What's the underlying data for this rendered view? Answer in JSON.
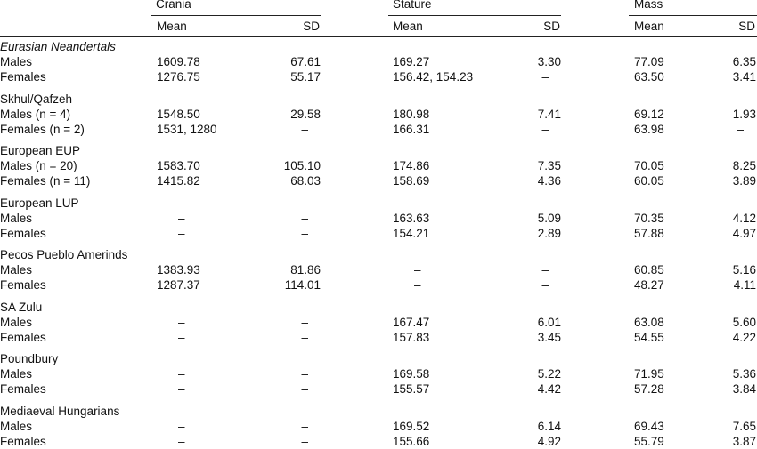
{
  "header": {
    "groups": [
      "Crania",
      "Stature",
      "Mass"
    ],
    "subheaders": [
      "Mean",
      "SD",
      "Mean",
      "SD",
      "Mean",
      "SD"
    ]
  },
  "table": {
    "groups": [
      {
        "label": "Eurasian Neandertals",
        "rows": [
          {
            "label": "Males",
            "cells": [
              "1609.78",
              "67.61",
              "169.27",
              "3.30",
              "77.09",
              "6.35"
            ]
          },
          {
            "label": "Females",
            "cells": [
              "1276.75",
              "55.17",
              "156.42, 154.23",
              "–",
              "63.50",
              "3.41"
            ]
          }
        ]
      },
      {
        "label": "Skhul/Qafzeh",
        "rows": [
          {
            "label": "Males (n = 4)",
            "cells": [
              "1548.50",
              "29.58",
              "180.98",
              "7.41",
              "69.12",
              "1.93"
            ]
          },
          {
            "label": "Females (n = 2)",
            "cells": [
              "1531, 1280",
              "–",
              "166.31",
              "–",
              "63.98",
              "–"
            ]
          }
        ]
      },
      {
        "label": "European EUP",
        "rows": [
          {
            "label": "Males (n = 20)",
            "cells": [
              "1583.70",
              "105.10",
              "174.86",
              "7.35",
              "70.05",
              "8.25"
            ]
          },
          {
            "label": "Females (n = 11)",
            "cells": [
              "1415.82",
              "68.03",
              "158.69",
              "4.36",
              "60.05",
              "3.89"
            ]
          }
        ]
      },
      {
        "label": "European LUP",
        "rows": [
          {
            "label": "Males",
            "cells": [
              "–",
              "–",
              "163.63",
              "5.09",
              "70.35",
              "4.12"
            ]
          },
          {
            "label": "Females",
            "cells": [
              "–",
              "–",
              "154.21",
              "2.89",
              "57.88",
              "4.97"
            ]
          }
        ]
      },
      {
        "label": "Pecos Pueblo Amerinds",
        "rows": [
          {
            "label": "Males",
            "cells": [
              "1383.93",
              "81.86",
              "–",
              "–",
              "60.85",
              "5.16"
            ]
          },
          {
            "label": "Females",
            "cells": [
              "1287.37",
              "114.01",
              "–",
              "–",
              "48.27",
              "4.11"
            ]
          }
        ]
      },
      {
        "label": "SA Zulu",
        "rows": [
          {
            "label": "Males",
            "cells": [
              "–",
              "–",
              "167.47",
              "6.01",
              "63.08",
              "5.60"
            ]
          },
          {
            "label": "Females",
            "cells": [
              "–",
              "–",
              "157.83",
              "3.45",
              "54.55",
              "4.22"
            ]
          }
        ]
      },
      {
        "label": "Poundbury",
        "rows": [
          {
            "label": "Males",
            "cells": [
              "–",
              "–",
              "169.58",
              "5.22",
              "71.95",
              "5.36"
            ]
          },
          {
            "label": "Females",
            "cells": [
              "–",
              "–",
              "155.57",
              "4.42",
              "57.28",
              "3.84"
            ]
          }
        ]
      },
      {
        "label": "Mediaeval Hungarians",
        "rows": [
          {
            "label": "Males",
            "cells": [
              "–",
              "–",
              "169.52",
              "6.14",
              "69.43",
              "7.65"
            ]
          },
          {
            "label": "Females",
            "cells": [
              "–",
              "–",
              "155.66",
              "4.92",
              "55.79",
              "3.87"
            ]
          }
        ]
      }
    ]
  }
}
